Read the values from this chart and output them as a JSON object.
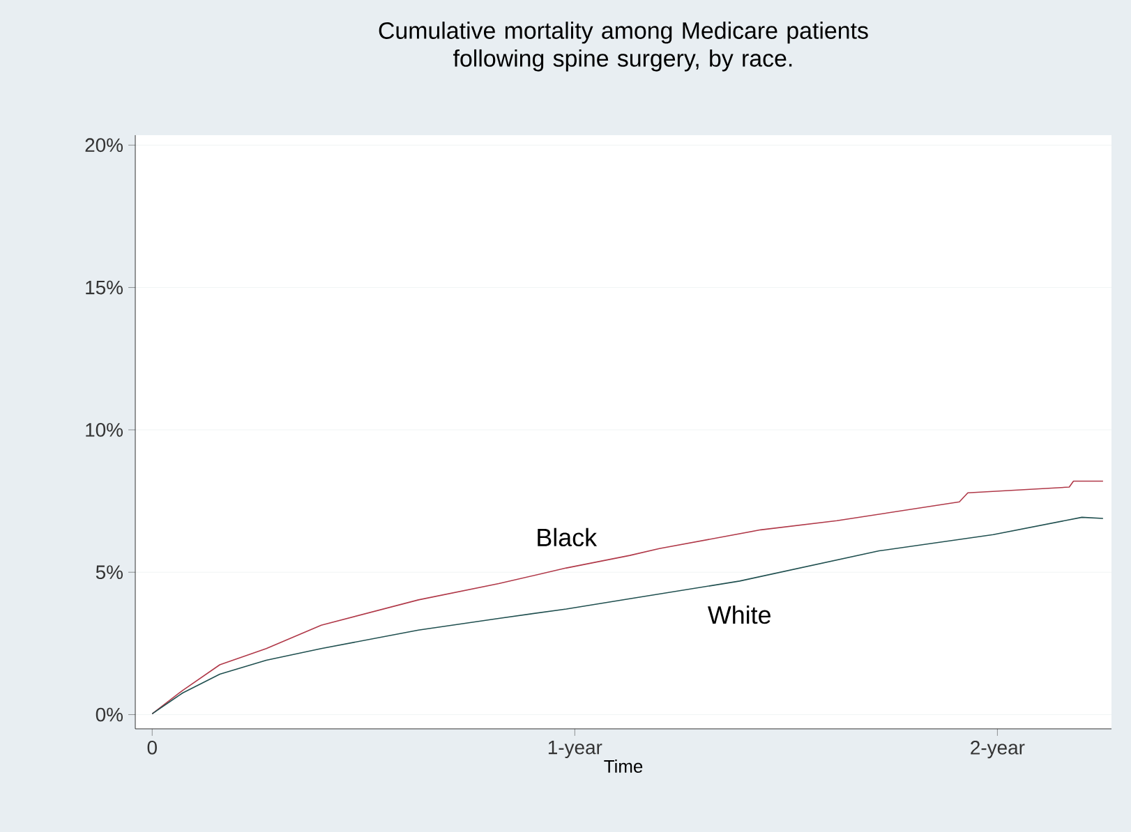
{
  "chart_data": {
    "type": "line",
    "title": "Cumulative mortality among Medicare patients\nfollowing spine surgery, by race.",
    "xlabel": "Time",
    "xlim": [
      -0.04,
      2.27
    ],
    "xticks": [
      0,
      {
        "value": 1,
        "label": "1-year"
      },
      {
        "value": 2,
        "label": "2-year"
      }
    ],
    "ylim": [
      -0.5,
      20.35
    ],
    "yticks": [
      {
        "value": 0,
        "label": "0%"
      },
      {
        "value": 5,
        "label": "5%"
      },
      {
        "value": 10,
        "label": "10%"
      },
      {
        "value": 15,
        "label": "15%"
      },
      {
        "value": 20,
        "label": "20%"
      }
    ],
    "grid": "y",
    "legend": false,
    "marker": "none",
    "line_style": "solid",
    "series": [
      {
        "name": "Black",
        "color": "#b03848",
        "x": [
          0,
          0.072,
          0.16,
          0.27,
          0.4,
          0.63,
          0.82,
          0.98,
          1.13,
          1.2,
          1.44,
          1.62,
          1.91,
          1.93,
          2.17,
          2.18,
          2.25
        ],
        "values": [
          0.03,
          0.85,
          1.75,
          2.32,
          3.14,
          4.03,
          4.6,
          5.15,
          5.59,
          5.83,
          6.49,
          6.81,
          7.47,
          7.79,
          7.99,
          8.2,
          8.2
        ]
      },
      {
        "name": "White",
        "color": "#1f4f4f",
        "x": [
          0,
          0.072,
          0.16,
          0.27,
          0.4,
          0.63,
          0.82,
          0.98,
          1.13,
          1.39,
          1.72,
          1.99,
          2.2,
          2.25
        ],
        "values": [
          0.03,
          0.76,
          1.42,
          1.91,
          2.32,
          2.97,
          3.38,
          3.71,
          4.07,
          4.69,
          5.75,
          6.32,
          6.93,
          6.89
        ]
      }
    ]
  }
}
